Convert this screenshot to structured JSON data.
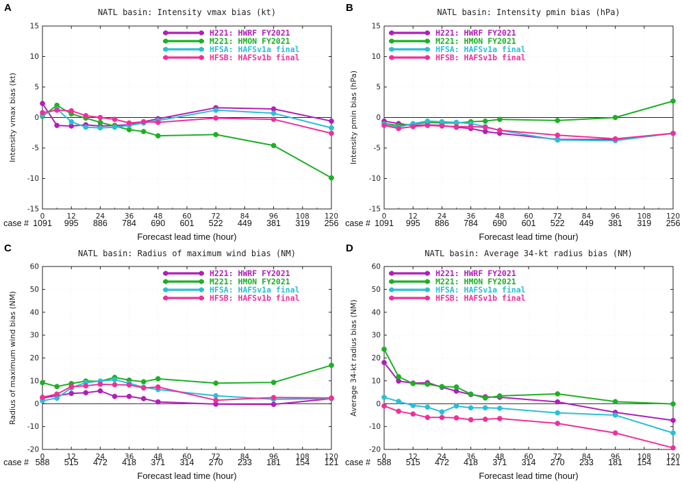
{
  "figure": {
    "case_prefix": "case #",
    "x_ticks": [
      0,
      12,
      24,
      36,
      48,
      60,
      72,
      84,
      96,
      108,
      120
    ],
    "series_colors": {
      "H221": "#b01fb8",
      "M221": "#1db024",
      "HFSA": "#2bbfd6",
      "HFSB": "#f0309a"
    }
  },
  "chart_data": [
    {
      "panel": "A",
      "type": "line",
      "title": "NATL basin: Intensity vmax bias (kt)",
      "xlabel": "Forecast lead time (hour)",
      "ylabel": "Intensity vmax bias (kt)",
      "xlim": [
        0,
        120
      ],
      "ylim": [
        -15,
        15
      ],
      "yticks": [
        -15,
        -10,
        -5,
        0,
        5,
        10,
        15
      ],
      "case_ticks": [
        0,
        12,
        24,
        36,
        48,
        60,
        72,
        84,
        96,
        108,
        120
      ],
      "case_labels": [
        "1091",
        "995",
        "886",
        "784",
        "690",
        "601",
        "522",
        "449",
        "381",
        "319",
        "256"
      ],
      "legend": [
        {
          "key": "H221",
          "label": "H221: HWRF FY2021"
        },
        {
          "key": "M221",
          "label": "M221: HMON FY2021"
        },
        {
          "key": "HFSA",
          "label": "HFSA: HAFSv1a final"
        },
        {
          "key": "HFSB",
          "label": "HFSB: HAFSv1b final"
        }
      ],
      "series": [
        {
          "key": "H221",
          "x": [
            0,
            6,
            12,
            18,
            24,
            30,
            36,
            42,
            48,
            72,
            96,
            120
          ],
          "values": [
            2.3,
            -1.3,
            -1.4,
            -1.2,
            -1.4,
            -1.3,
            -1.2,
            -0.7,
            -0.2,
            1.6,
            1.4,
            -0.6
          ]
        },
        {
          "key": "M221",
          "x": [
            0,
            6,
            12,
            18,
            24,
            30,
            36,
            42,
            48,
            72,
            96,
            120
          ],
          "values": [
            0.2,
            2.0,
            0.6,
            -0.1,
            -0.8,
            -1.4,
            -2.0,
            -2.3,
            -3.0,
            -2.8,
            -4.6,
            -9.9
          ]
        },
        {
          "key": "HFSA",
          "x": [
            0,
            6,
            12,
            18,
            24,
            30,
            36,
            42,
            48,
            72,
            96,
            120
          ],
          "values": [
            0.4,
            1.4,
            -0.7,
            -1.6,
            -1.7,
            -1.6,
            -1.3,
            -0.9,
            -0.5,
            1.2,
            0.7,
            -1.7
          ]
        },
        {
          "key": "HFSB",
          "x": [
            0,
            6,
            12,
            18,
            24,
            30,
            36,
            42,
            48,
            72,
            96,
            120
          ],
          "values": [
            0.8,
            1.2,
            1.1,
            0.3,
            0.0,
            -0.3,
            -0.9,
            -0.7,
            -0.8,
            -0.1,
            -0.3,
            -2.6
          ]
        }
      ]
    },
    {
      "panel": "B",
      "type": "line",
      "title": "NATL basin: Intensity pmin bias (hPa)",
      "xlabel": "Forecast lead time (hour)",
      "ylabel": "Intensity pmin bias (hPa)",
      "xlim": [
        0,
        120
      ],
      "ylim": [
        -15,
        15
      ],
      "yticks": [
        -15,
        -10,
        -5,
        0,
        5,
        10,
        15
      ],
      "case_ticks": [
        0,
        12,
        24,
        36,
        48,
        60,
        72,
        84,
        96,
        108,
        120
      ],
      "case_labels": [
        "1091",
        "995",
        "886",
        "784",
        "690",
        "601",
        "522",
        "449",
        "381",
        "319",
        "256"
      ],
      "legend": [
        {
          "key": "H221",
          "label": "H221: HWRF FY2021"
        },
        {
          "key": "M221",
          "label": "M221: HMON FY2021"
        },
        {
          "key": "HFSA",
          "label": "HFSA: HAFSv1a final"
        },
        {
          "key": "HFSB",
          "label": "HFSB: HAFSv1b final"
        }
      ],
      "series": [
        {
          "key": "H221",
          "x": [
            0,
            6,
            12,
            18,
            24,
            30,
            36,
            42,
            48,
            72,
            96,
            120
          ],
          "values": [
            -0.6,
            -1.0,
            -1.3,
            -1.2,
            -1.3,
            -1.6,
            -1.8,
            -2.3,
            -2.6,
            -3.6,
            -3.6,
            -2.6
          ]
        },
        {
          "key": "M221",
          "x": [
            0,
            6,
            12,
            18,
            24,
            30,
            36,
            42,
            48,
            72,
            96,
            120
          ],
          "values": [
            -1.0,
            -1.3,
            -1.1,
            -0.8,
            -0.9,
            -0.9,
            -0.7,
            -0.6,
            -0.3,
            -0.5,
            0.0,
            2.7
          ]
        },
        {
          "key": "HFSA",
          "x": [
            0,
            6,
            12,
            18,
            24,
            30,
            36,
            42,
            48,
            72,
            96,
            120
          ],
          "values": [
            -1.1,
            -1.6,
            -1.0,
            -0.6,
            -0.7,
            -0.8,
            -1.0,
            -1.5,
            -2.1,
            -3.7,
            -3.8,
            -2.6
          ]
        },
        {
          "key": "HFSB",
          "x": [
            0,
            6,
            12,
            18,
            24,
            30,
            36,
            42,
            48,
            72,
            96,
            120
          ],
          "values": [
            -1.3,
            -1.8,
            -1.5,
            -1.3,
            -1.4,
            -1.5,
            -1.5,
            -1.6,
            -2.1,
            -2.9,
            -3.5,
            -2.6
          ]
        }
      ]
    },
    {
      "panel": "C",
      "type": "line",
      "title": "NATL basin: Radius of maximum wind bias (NM)",
      "xlabel": "Forecast lead time (hour)",
      "ylabel": "Radius of maximum wind bias (NM)",
      "xlim": [
        0,
        120
      ],
      "ylim": [
        -20,
        60
      ],
      "yticks": [
        -20,
        -10,
        0,
        10,
        20,
        30,
        40,
        50,
        60
      ],
      "case_ticks": [
        0,
        12,
        24,
        36,
        48,
        60,
        72,
        84,
        96,
        108,
        120
      ],
      "case_labels": [
        "588",
        "515",
        "472",
        "418",
        "371",
        "314",
        "270",
        "233",
        "181",
        "154",
        "121"
      ],
      "legend": [
        {
          "key": "H221",
          "label": "H221: HWRF FY2021"
        },
        {
          "key": "M221",
          "label": "M221: HMON FY2021"
        },
        {
          "key": "HFSA",
          "label": "HFSA: HAFSv1a final"
        },
        {
          "key": "HFSB",
          "label": "HFSB: HAFSv1b final"
        }
      ],
      "series": [
        {
          "key": "H221",
          "x": [
            0,
            6,
            12,
            18,
            24,
            30,
            36,
            42,
            48,
            72,
            96,
            120
          ],
          "values": [
            2.5,
            3.5,
            4.5,
            4.8,
            5.6,
            3.2,
            3.2,
            2.2,
            0.8,
            -0.2,
            -0.3,
            2.2
          ]
        },
        {
          "key": "M221",
          "x": [
            0,
            6,
            12,
            18,
            24,
            30,
            36,
            42,
            48,
            72,
            96,
            120
          ],
          "values": [
            9.2,
            7.5,
            8.8,
            9.9,
            9.8,
            11.5,
            10.3,
            9.6,
            10.9,
            9.0,
            9.3,
            16.8
          ]
        },
        {
          "key": "HFSA",
          "x": [
            0,
            6,
            12,
            18,
            24,
            30,
            36,
            42,
            48,
            72,
            96,
            120
          ],
          "values": [
            1.3,
            2.4,
            6.9,
            9.2,
            9.9,
            10.5,
            8.9,
            7.2,
            6.2,
            3.5,
            1.9,
            2.2
          ]
        },
        {
          "key": "HFSB",
          "x": [
            0,
            6,
            12,
            18,
            24,
            30,
            36,
            42,
            48,
            72,
            96,
            120
          ],
          "values": [
            2.8,
            4.2,
            7.5,
            7.8,
            8.5,
            8.3,
            8.2,
            6.9,
            7.3,
            1.5,
            2.7,
            2.5
          ]
        }
      ]
    },
    {
      "panel": "D",
      "type": "line",
      "title": "NATL basin: Average 34-kt radius bias (NM)",
      "xlabel": "Forecast lead time (hour)",
      "ylabel": "Average 34-kt radius bias (NM)",
      "xlim": [
        0,
        120
      ],
      "ylim": [
        -20,
        60
      ],
      "yticks": [
        -20,
        -10,
        0,
        10,
        20,
        30,
        40,
        50,
        60
      ],
      "case_ticks": [
        0,
        12,
        24,
        36,
        48,
        60,
        72,
        84,
        96,
        108,
        120
      ],
      "case_labels": [
        "588",
        "515",
        "472",
        "418",
        "371",
        "314",
        "270",
        "233",
        "181",
        "154",
        "121"
      ],
      "legend": [
        {
          "key": "H221",
          "label": "H221: HWRF FY2021"
        },
        {
          "key": "M221",
          "label": "M221: HMON FY2021"
        },
        {
          "key": "HFSA",
          "label": "HFSA: HAFSv1a final"
        },
        {
          "key": "HFSB",
          "label": "HFSB: HAFSv1b final"
        }
      ],
      "series": [
        {
          "key": "H221",
          "x": [
            0,
            6,
            12,
            18,
            24,
            30,
            36,
            42,
            48,
            72,
            96,
            120
          ],
          "values": [
            18.0,
            9.9,
            9.0,
            9.2,
            7.2,
            5.5,
            4.0,
            3.0,
            2.8,
            0.8,
            -3.8,
            -7.3
          ]
        },
        {
          "key": "M221",
          "x": [
            0,
            6,
            12,
            18,
            24,
            30,
            36,
            42,
            48,
            72,
            96,
            120
          ],
          "values": [
            23.8,
            11.8,
            8.8,
            8.5,
            7.5,
            7.3,
            4.2,
            2.5,
            3.4,
            4.3,
            0.9,
            -0.1
          ]
        },
        {
          "key": "HFSA",
          "x": [
            0,
            6,
            12,
            18,
            24,
            30,
            36,
            42,
            48,
            72,
            96,
            120
          ],
          "values": [
            2.8,
            1.0,
            -0.8,
            -1.5,
            -3.6,
            -1.0,
            -1.8,
            -1.8,
            -2.0,
            -4.0,
            -5.0,
            -12.8
          ]
        },
        {
          "key": "HFSB",
          "x": [
            0,
            6,
            12,
            18,
            24,
            30,
            36,
            42,
            48,
            72,
            96,
            120
          ],
          "values": [
            -1.0,
            -3.3,
            -4.5,
            -6.0,
            -6.0,
            -6.2,
            -7.0,
            -6.8,
            -6.5,
            -8.6,
            -12.8,
            -19.3
          ]
        }
      ]
    }
  ]
}
